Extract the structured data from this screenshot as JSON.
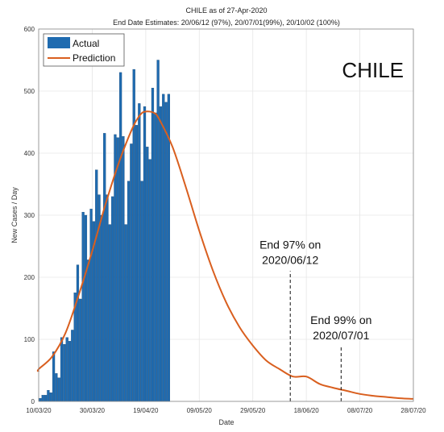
{
  "chart_data": {
    "type": "bar",
    "title": "CHILE as of 27-Apr-2020",
    "subtitle": "End Date Estimates: 20/06/12 (97%), 20/07/01(99%), 20/10/02 (100%)",
    "country_label": "CHILE",
    "xlabel": "Date",
    "ylabel": "New Cases / Day",
    "ylim": [
      0,
      600
    ],
    "xlim": [
      0,
      140
    ],
    "grid": true,
    "legend_position": "top-left",
    "y_ticks": [
      {
        "value": 0,
        "label": "0"
      },
      {
        "value": 100,
        "label": "100"
      },
      {
        "value": 200,
        "label": "200"
      },
      {
        "value": 300,
        "label": "300"
      },
      {
        "value": 400,
        "label": "400"
      },
      {
        "value": 500,
        "label": "500"
      },
      {
        "value": 600,
        "label": "600"
      }
    ],
    "x_ticks": [
      {
        "value": 0,
        "label": "10/03/20"
      },
      {
        "value": 20,
        "label": "30/03/20"
      },
      {
        "value": 40,
        "label": "19/04/20"
      },
      {
        "value": 60,
        "label": "09/05/20"
      },
      {
        "value": 80,
        "label": "29/05/20"
      },
      {
        "value": 100,
        "label": "18/06/20"
      },
      {
        "value": 120,
        "label": "08/07/20"
      },
      {
        "value": 140,
        "label": "28/07/20"
      }
    ],
    "series": [
      {
        "name": "Actual",
        "kind": "bar",
        "color": "#1f6bb0",
        "x": [
          0,
          1,
          2,
          3,
          4,
          5,
          6,
          7,
          8,
          9,
          10,
          11,
          12,
          13,
          14,
          15,
          16,
          17,
          18,
          19,
          20,
          21,
          22,
          23,
          24,
          25,
          26,
          27,
          28,
          29,
          30,
          31,
          32,
          33,
          34,
          35,
          36,
          37,
          38,
          39,
          40,
          41,
          42,
          43,
          44,
          45,
          46,
          47,
          48
        ],
        "values": [
          5,
          10,
          10,
          18,
          14,
          80,
          45,
          38,
          103,
          92,
          103,
          97,
          115,
          175,
          220,
          165,
          305,
          300,
          228,
          310,
          290,
          373,
          333,
          300,
          432,
          333,
          285,
          330,
          430,
          425,
          530,
          427,
          285,
          355,
          415,
          535,
          445,
          480,
          355,
          475,
          410,
          390,
          505,
          465,
          550,
          475,
          495,
          482,
          495
        ]
      },
      {
        "name": "Prediction",
        "kind": "line",
        "color": "#d95f1f",
        "x": [
          -1,
          0,
          5,
          10,
          15,
          20,
          25,
          30,
          35,
          38,
          40,
          43,
          45,
          50,
          55,
          60,
          65,
          70,
          75,
          80,
          85,
          90,
          95,
          100,
          105,
          110,
          115,
          120,
          125,
          130,
          135,
          140
        ],
        "values": [
          48,
          52,
          72,
          110,
          172,
          242,
          318,
          385,
          440,
          462,
          467,
          465,
          455,
          410,
          345,
          275,
          212,
          160,
          120,
          90,
          66,
          52,
          40,
          40,
          28,
          22,
          17,
          12,
          9,
          7,
          5,
          4
        ]
      }
    ],
    "annotations": [
      {
        "x": 94,
        "y_bottom": 0,
        "y_top": 210,
        "line1": "End 97% on",
        "line2": "2020/06/12"
      },
      {
        "x": 113,
        "y_bottom": 0,
        "y_top": 88,
        "line1": "End 99% on",
        "line2": "2020/07/01"
      }
    ]
  }
}
